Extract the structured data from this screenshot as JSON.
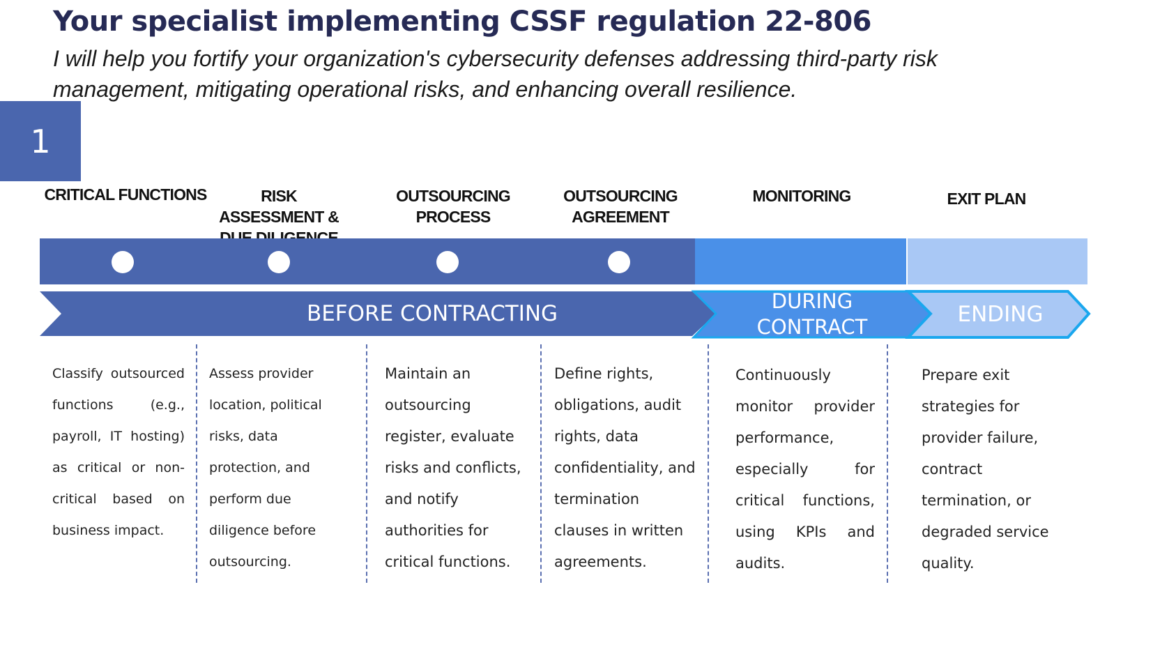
{
  "title": "Your specialist implementing CSSF regulation  22-806",
  "subtitle": "I will help you fortify your organization's cybersecurity defenses addressing third-party risk management, mitigating operational risks, and enhancing overall resilience.",
  "step_number": "1",
  "columns": [
    {
      "heading": "CRITICAL FUNCTIONS",
      "description": "Classify outsourced functions (e.g., payroll, IT hosting) as critical or non-critical based on business impact."
    },
    {
      "heading": "RISK ASSESSMENT & DUE DILIGENCE",
      "description": "Assess provider location, political risks, data protection, and perform due diligence before outsourcing."
    },
    {
      "heading": "OUTSOURCING PROCESS",
      "description": "Maintain an outsourcing register, evaluate risks and conflicts, and notify authorities for critical functions."
    },
    {
      "heading": "OUTSOURCING AGREEMENT",
      "description": "Define rights, obligations, audit rights, data confidentiality, and termination clauses in written agreements."
    },
    {
      "heading": "MONITORING",
      "description": "Continuously monitor provider performance, especially for critical functions, using KPIs and audits."
    },
    {
      "heading": "EXIT PLAN",
      "description": "Prepare exit strategies for provider failure, contract termination, or degraded service quality."
    }
  ],
  "phases": [
    {
      "label": "BEFORE CONTRACTING",
      "color": "#4a66ae"
    },
    {
      "label": "DURING CONTRACT",
      "color": "#4a90e8"
    },
    {
      "label": "ENDING",
      "color": "#a9c8f5"
    }
  ],
  "colors": {
    "dark_blue": "#4a66ae",
    "mid_blue": "#4a90e8",
    "light_blue": "#a9c8f5",
    "outline_blue": "#1aa7ee",
    "title": "#262a55"
  }
}
